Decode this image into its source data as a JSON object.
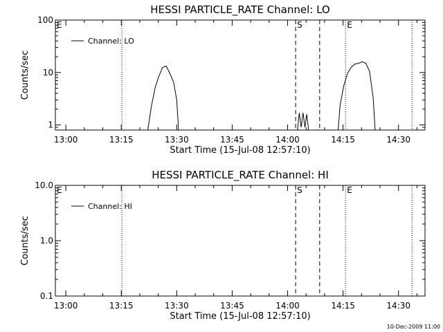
{
  "footer_date": "10-Dec-2009 11:00",
  "chart_data": [
    {
      "type": "line",
      "title": "HESSI PARTICLE_RATE Channel: LO",
      "xlabel": "Start Time (15-Jul-08 12:57:10)",
      "ylabel": "Counts/sec",
      "yscale": "log",
      "xlim": [
        "12:57:10",
        "14:37:10"
      ],
      "ylim": [
        0.8,
        100
      ],
      "x_ticks": [
        "13:00",
        "13:15",
        "13:30",
        "13:45",
        "14:00",
        "14:15",
        "14:30"
      ],
      "y_ticks": [
        {
          "value": 1,
          "label": "1"
        },
        {
          "value": 10,
          "label": "10"
        },
        {
          "value": 100,
          "label": "100"
        }
      ],
      "legend": {
        "position": "top-left",
        "entries": [
          "Channel: LO"
        ]
      },
      "vertical_markers": [
        {
          "time": "12:57:10",
          "label": "E",
          "style": "dotted"
        },
        {
          "time": "13:15:10",
          "label": "",
          "style": "dotted"
        },
        {
          "time": "14:02:10",
          "label": "S",
          "style": "dashed"
        },
        {
          "time": "14:08:40",
          "label": "",
          "style": "dashed"
        },
        {
          "time": "14:15:40",
          "label": "E",
          "style": "dotted"
        },
        {
          "time": "14:33:40",
          "label": "",
          "style": "dotted"
        }
      ],
      "series": [
        {
          "name": "Channel: LO",
          "segments": [
            [
              {
                "t": "13:22:10",
                "y": 0.8
              },
              {
                "t": "13:23:10",
                "y": 2.3
              },
              {
                "t": "13:24:10",
                "y": 5.2
              },
              {
                "t": "13:25:10",
                "y": 8.5
              },
              {
                "t": "13:26:10",
                "y": 12.5
              },
              {
                "t": "13:27:10",
                "y": 13.3
              },
              {
                "t": "13:28:10",
                "y": 9.5
              },
              {
                "t": "13:29:10",
                "y": 6.5
              },
              {
                "t": "13:30:00",
                "y": 3.0
              },
              {
                "t": "13:30:30",
                "y": 0.8
              }
            ],
            [
              {
                "t": "14:02:40",
                "y": 0.8
              },
              {
                "t": "14:03:10",
                "y": 1.7
              },
              {
                "t": "14:03:40",
                "y": 0.9
              },
              {
                "t": "14:04:10",
                "y": 1.7
              },
              {
                "t": "14:04:40",
                "y": 0.9
              },
              {
                "t": "14:05:10",
                "y": 1.6
              },
              {
                "t": "14:05:40",
                "y": 0.8
              }
            ],
            [
              {
                "t": "14:13:40",
                "y": 0.8
              },
              {
                "t": "14:14:10",
                "y": 2.3
              },
              {
                "t": "14:15:10",
                "y": 5.5
              },
              {
                "t": "14:16:10",
                "y": 9.5
              },
              {
                "t": "14:17:10",
                "y": 12.5
              },
              {
                "t": "14:18:10",
                "y": 14.5
              },
              {
                "t": "14:19:10",
                "y": 15.0
              },
              {
                "t": "14:20:10",
                "y": 16.0
              },
              {
                "t": "14:21:10",
                "y": 15.0
              },
              {
                "t": "14:22:10",
                "y": 10.5
              },
              {
                "t": "14:23:10",
                "y": 3.2
              },
              {
                "t": "14:23:40",
                "y": 0.8
              }
            ]
          ]
        }
      ]
    },
    {
      "type": "line",
      "title": "HESSI PARTICLE_RATE Channel: HI",
      "xlabel": "Start Time (15-Jul-08 12:57:10)",
      "ylabel": "Counts/sec",
      "yscale": "log",
      "xlim": [
        "12:57:10",
        "14:37:10"
      ],
      "ylim": [
        0.1,
        10
      ],
      "x_ticks": [
        "13:00",
        "13:15",
        "13:30",
        "13:45",
        "14:00",
        "14:15",
        "14:30"
      ],
      "y_ticks": [
        {
          "value": 0.1,
          "label": "0.1"
        },
        {
          "value": 1,
          "label": "1.0"
        },
        {
          "value": 10,
          "label": "10.0"
        }
      ],
      "legend": {
        "position": "top-left",
        "entries": [
          "Channel: HI"
        ]
      },
      "vertical_markers": [
        {
          "time": "12:57:10",
          "label": "E",
          "style": "dotted"
        },
        {
          "time": "13:15:10",
          "label": "",
          "style": "dotted"
        },
        {
          "time": "14:02:10",
          "label": "S",
          "style": "dashed"
        },
        {
          "time": "14:08:40",
          "label": "",
          "style": "dashed"
        },
        {
          "time": "14:15:40",
          "label": "E",
          "style": "dotted"
        },
        {
          "time": "14:33:40",
          "label": "",
          "style": "dotted"
        }
      ],
      "series": [
        {
          "name": "Channel: HI",
          "segments": []
        }
      ]
    }
  ]
}
